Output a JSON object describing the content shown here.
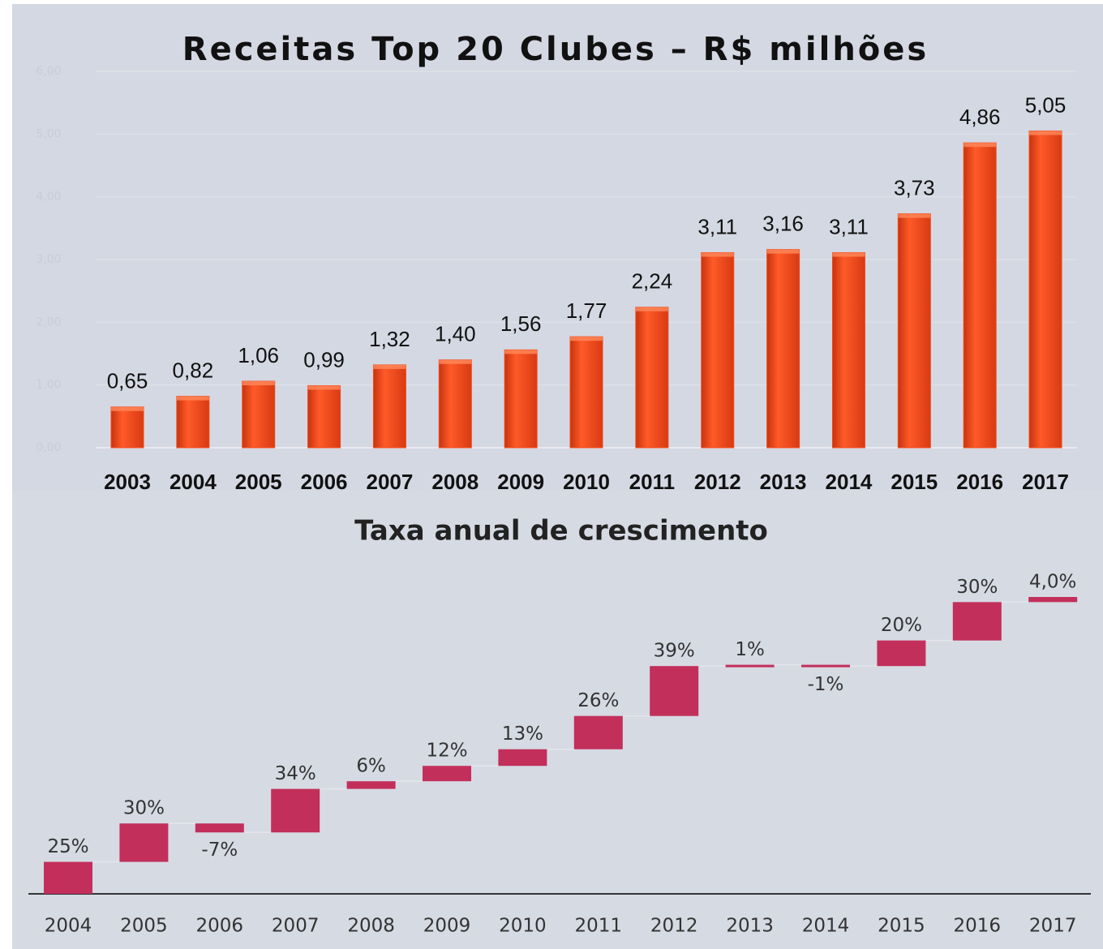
{
  "chart_data": [
    {
      "type": "bar",
      "title": "Receitas Top 20 Clubes – R$ milhões",
      "categories": [
        "2003",
        "2004",
        "2005",
        "2006",
        "2007",
        "2008",
        "2009",
        "2010",
        "2011",
        "2012",
        "2013",
        "2014",
        "2015",
        "2016",
        "2017"
      ],
      "values": [
        0.65,
        0.82,
        1.06,
        0.99,
        1.32,
        1.4,
        1.56,
        1.77,
        2.24,
        3.11,
        3.16,
        3.11,
        3.73,
        4.86,
        5.05
      ],
      "value_labels": [
        "0,65",
        "0,82",
        "1,06",
        "0,99",
        "1,32",
        "1,40",
        "1,56",
        "1,77",
        "2,24",
        "3,11",
        "3,16",
        "3,11",
        "3,73",
        "4,86",
        "5,05"
      ],
      "color": "#f04a1c",
      "ylim": [
        0,
        6
      ],
      "yticks": [
        {
          "value": 0,
          "label": "0,00"
        },
        {
          "value": 1,
          "label": "1,00"
        },
        {
          "value": 2,
          "label": "2,00"
        },
        {
          "value": 3,
          "label": "3,00"
        },
        {
          "value": 4,
          "label": "4,00"
        },
        {
          "value": 5,
          "label": "5,00"
        },
        {
          "value": 6,
          "label": "6,00"
        }
      ],
      "grid": true
    },
    {
      "type": "waterfall",
      "title": "Taxa anual de crescimento",
      "categories": [
        "2004",
        "2005",
        "2006",
        "2007",
        "2008",
        "2009",
        "2010",
        "2011",
        "2012",
        "2013",
        "2014",
        "2015",
        "2016",
        "2017"
      ],
      "values": [
        25,
        30,
        -7,
        34,
        6,
        12,
        13,
        26,
        39,
        1,
        -1,
        20,
        30,
        4.0
      ],
      "value_labels": [
        "25%",
        "30%",
        "-7%",
        "34%",
        "6%",
        "12%",
        "13%",
        "26%",
        "39%",
        "1%",
        "-1%",
        "20%",
        "30%",
        "4,0%"
      ],
      "color": "#c22f5b"
    }
  ]
}
